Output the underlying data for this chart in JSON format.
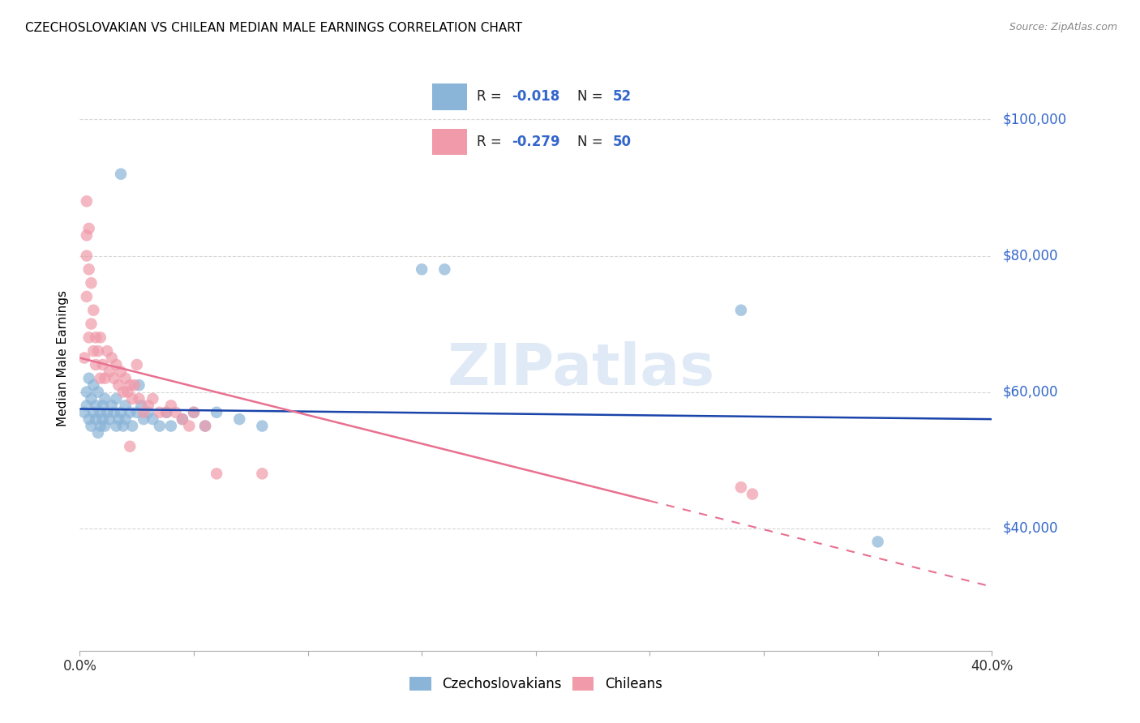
{
  "title": "CZECHOSLOVAKIAN VS CHILEAN MEDIAN MALE EARNINGS CORRELATION CHART",
  "source": "Source: ZipAtlas.com",
  "ylabel": "Median Male Earnings",
  "yticks": [
    40000,
    60000,
    80000,
    100000
  ],
  "ytick_labels": [
    "$40,000",
    "$60,000",
    "$80,000",
    "$100,000"
  ],
  "xmin": 0.0,
  "xmax": 0.4,
  "ymin": 22000,
  "ymax": 108000,
  "watermark_text": "ZIPatlas",
  "czecho_color": "#8ab4d8",
  "chilean_color": "#f09aaa",
  "czecho_line_color": "#1a44aa",
  "chilean_line_color": "#e87090",
  "czecho_R": -0.018,
  "czecho_N": 52,
  "chilean_R": -0.279,
  "chilean_N": 50,
  "czecho_points": [
    [
      0.002,
      57000
    ],
    [
      0.003,
      60000
    ],
    [
      0.003,
      58000
    ],
    [
      0.004,
      62000
    ],
    [
      0.004,
      56000
    ],
    [
      0.005,
      59000
    ],
    [
      0.005,
      55000
    ],
    [
      0.006,
      57000
    ],
    [
      0.006,
      61000
    ],
    [
      0.007,
      58000
    ],
    [
      0.007,
      56000
    ],
    [
      0.008,
      60000
    ],
    [
      0.008,
      54000
    ],
    [
      0.009,
      57000
    ],
    [
      0.009,
      55000
    ],
    [
      0.01,
      58000
    ],
    [
      0.01,
      56000
    ],
    [
      0.011,
      59000
    ],
    [
      0.011,
      55000
    ],
    [
      0.012,
      57000
    ],
    [
      0.013,
      56000
    ],
    [
      0.014,
      58000
    ],
    [
      0.015,
      57000
    ],
    [
      0.016,
      59000
    ],
    [
      0.016,
      55000
    ],
    [
      0.017,
      56000
    ],
    [
      0.018,
      57000
    ],
    [
      0.019,
      55000
    ],
    [
      0.02,
      58000
    ],
    [
      0.02,
      56000
    ],
    [
      0.022,
      57000
    ],
    [
      0.023,
      55000
    ],
    [
      0.025,
      57000
    ],
    [
      0.026,
      61000
    ],
    [
      0.027,
      58000
    ],
    [
      0.028,
      56000
    ],
    [
      0.03,
      57000
    ],
    [
      0.032,
      56000
    ],
    [
      0.035,
      55000
    ],
    [
      0.038,
      57000
    ],
    [
      0.04,
      55000
    ],
    [
      0.045,
      56000
    ],
    [
      0.05,
      57000
    ],
    [
      0.055,
      55000
    ],
    [
      0.06,
      57000
    ],
    [
      0.07,
      56000
    ],
    [
      0.08,
      55000
    ],
    [
      0.018,
      92000
    ],
    [
      0.15,
      78000
    ],
    [
      0.16,
      78000
    ],
    [
      0.29,
      72000
    ],
    [
      0.35,
      38000
    ]
  ],
  "chilean_points": [
    [
      0.002,
      65000
    ],
    [
      0.003,
      74000
    ],
    [
      0.003,
      80000
    ],
    [
      0.004,
      68000
    ],
    [
      0.004,
      84000
    ],
    [
      0.005,
      70000
    ],
    [
      0.005,
      76000
    ],
    [
      0.006,
      66000
    ],
    [
      0.006,
      72000
    ],
    [
      0.007,
      68000
    ],
    [
      0.007,
      64000
    ],
    [
      0.008,
      66000
    ],
    [
      0.009,
      62000
    ],
    [
      0.009,
      68000
    ],
    [
      0.01,
      64000
    ],
    [
      0.011,
      62000
    ],
    [
      0.012,
      66000
    ],
    [
      0.013,
      63000
    ],
    [
      0.014,
      65000
    ],
    [
      0.015,
      62000
    ],
    [
      0.016,
      64000
    ],
    [
      0.017,
      61000
    ],
    [
      0.018,
      63000
    ],
    [
      0.019,
      60000
    ],
    [
      0.02,
      62000
    ],
    [
      0.021,
      60000
    ],
    [
      0.022,
      61000
    ],
    [
      0.023,
      59000
    ],
    [
      0.024,
      61000
    ],
    [
      0.025,
      64000
    ],
    [
      0.026,
      59000
    ],
    [
      0.028,
      57000
    ],
    [
      0.03,
      58000
    ],
    [
      0.032,
      59000
    ],
    [
      0.035,
      57000
    ],
    [
      0.038,
      57000
    ],
    [
      0.04,
      58000
    ],
    [
      0.042,
      57000
    ],
    [
      0.045,
      56000
    ],
    [
      0.048,
      55000
    ],
    [
      0.05,
      57000
    ],
    [
      0.055,
      55000
    ],
    [
      0.003,
      88000
    ],
    [
      0.003,
      83000
    ],
    [
      0.004,
      78000
    ],
    [
      0.022,
      52000
    ],
    [
      0.06,
      48000
    ],
    [
      0.08,
      48000
    ],
    [
      0.29,
      46000
    ],
    [
      0.295,
      45000
    ]
  ]
}
